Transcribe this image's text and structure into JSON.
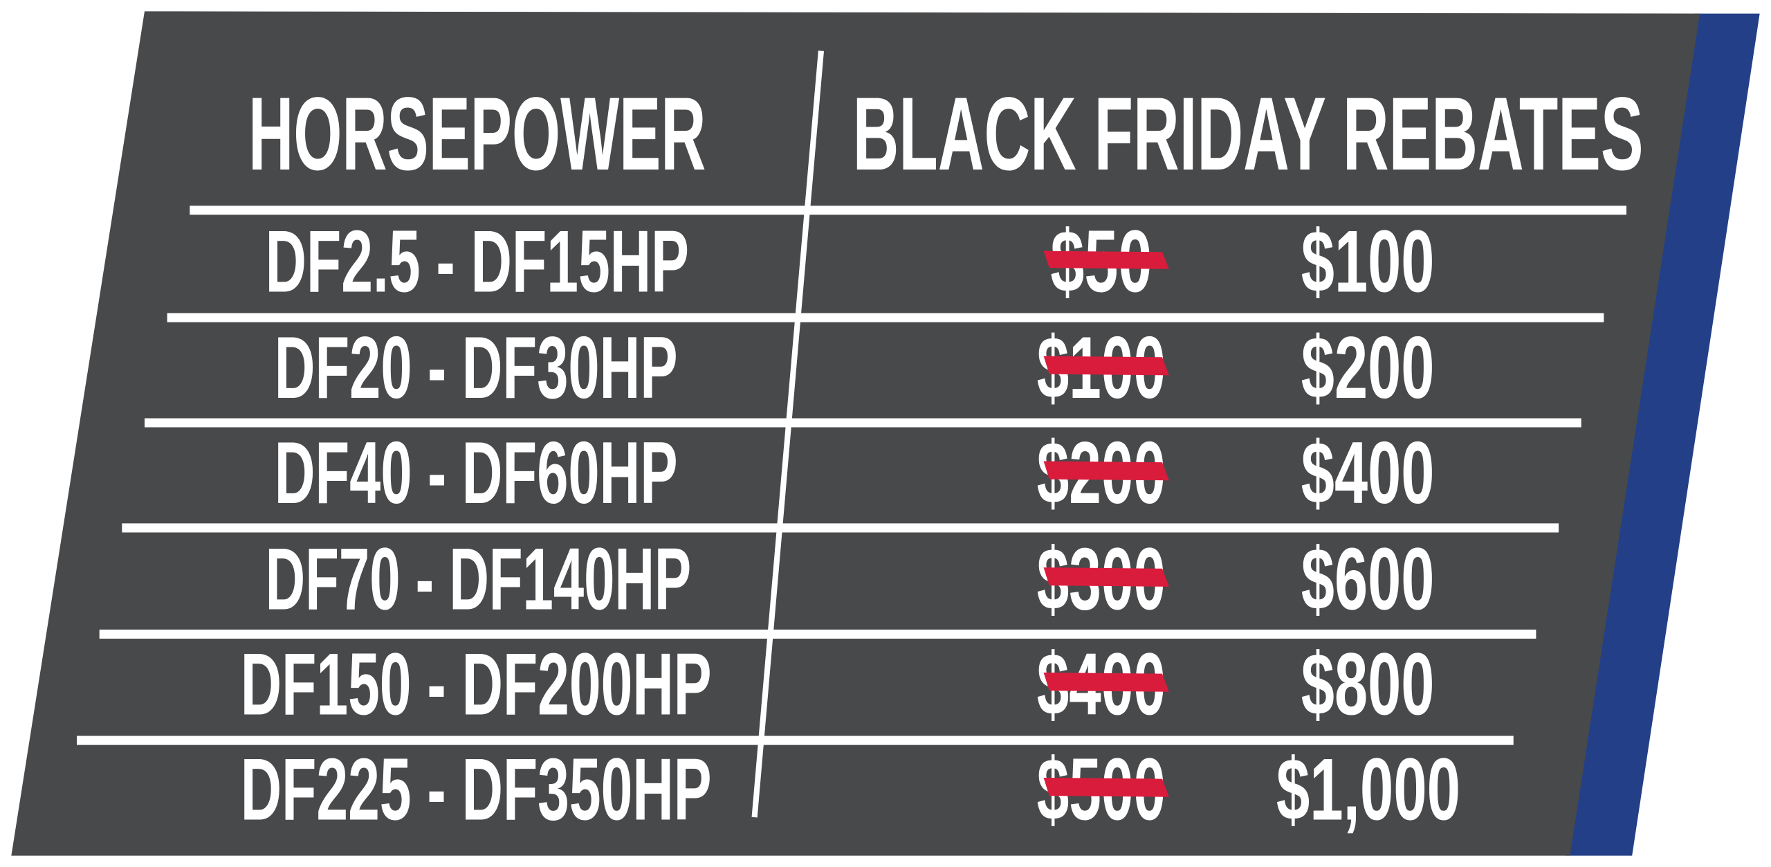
{
  "colors": {
    "panel": "#48494b",
    "accent_strip": "#233f87",
    "strike": "#da1c3c",
    "text": "#ffffff"
  },
  "header": {
    "horsepower": "HORSEPOWER",
    "rebates": "BLACK FRIDAY REBATES"
  },
  "rows": [
    {
      "range": "DF2.5 - DF15HP",
      "old_rebate": "$50",
      "new_rebate": "$100"
    },
    {
      "range": "DF20 - DF30HP",
      "old_rebate": "$100",
      "new_rebate": "$200"
    },
    {
      "range": "DF40 - DF60HP",
      "old_rebate": "$200",
      "new_rebate": "$400"
    },
    {
      "range": "DF70 - DF140HP",
      "old_rebate": "$300",
      "new_rebate": "$600"
    },
    {
      "range": "DF150 - DF200HP",
      "old_rebate": "$400",
      "new_rebate": "$800"
    },
    {
      "range": "DF225 - DF350HP",
      "old_rebate": "$500",
      "new_rebate": "$1,000"
    }
  ]
}
